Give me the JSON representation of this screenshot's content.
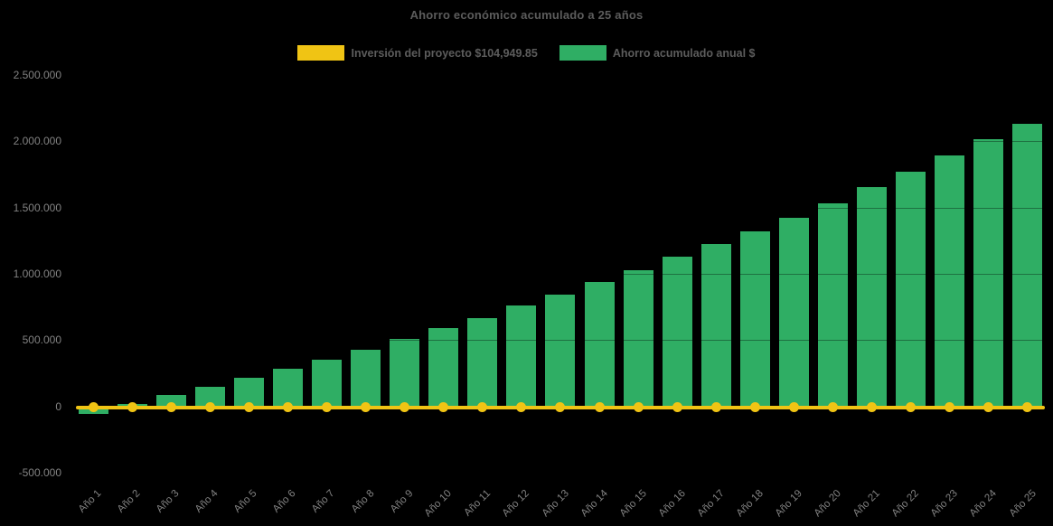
{
  "title": "Ahorro económico acumulado a 25 años",
  "colors": {
    "background": "#000000",
    "bar_green": "#2FAE64",
    "line_yellow": "#F0C414",
    "title_text": "#5C5C5C",
    "axis_text": "#828282"
  },
  "legend": [
    {
      "label": "Inversión del proyecto $104,949.85",
      "color": "#F0C414",
      "series_type": "line"
    },
    {
      "label": "Ahorro acumulado anual $",
      "color": "#2FAE64",
      "series_type": "bar"
    }
  ],
  "chart_data": {
    "type": "bar",
    "title": "Ahorro económico acumulado a 25 años",
    "categories": [
      "Año 1",
      "Año 2",
      "Año 3",
      "Año 4",
      "Año 5",
      "Año 6",
      "Año 7",
      "Año 8",
      "Año 9",
      "Año 10",
      "Año 11",
      "Año 12",
      "Año 13",
      "Año 14",
      "Año 15",
      "Año 16",
      "Año 17",
      "Año 18",
      "Año 19",
      "Año 20",
      "Año 21",
      "Año 22",
      "Año 23",
      "Año 24",
      "Año 25"
    ],
    "series": [
      {
        "name": "Ahorro acumulado anual $",
        "type": "bar",
        "color": "#2FAE64",
        "values": [
          -55000,
          18000,
          84000,
          148000,
          216000,
          285000,
          354000,
          430000,
          510000,
          593000,
          668000,
          762000,
          845000,
          940000,
          1030000,
          1128000,
          1226000,
          1320000,
          1425000,
          1532000,
          1652000,
          1768000,
          1890000,
          2013000,
          2135000
        ]
      },
      {
        "name": "Inversión del proyecto $104,949.85",
        "type": "line",
        "color": "#F0C414",
        "investment_value": 104949.85,
        "rendered_at_axis_value": 0,
        "markers": true
      }
    ],
    "xlabel": "",
    "ylabel": "",
    "ylim": [
      -500000,
      2500000
    ],
    "y_axis": {
      "tick_labels": [
        "2.500.000",
        "2.000.000",
        "1.500.000",
        "1.000.000",
        "500.000",
        "0",
        "-500.000"
      ],
      "tick_values": [
        2500000,
        2000000,
        1500000,
        1000000,
        500000,
        0,
        -500000
      ]
    },
    "grid": "faint",
    "legend_position": "top",
    "x_tick_rotation": -45
  }
}
